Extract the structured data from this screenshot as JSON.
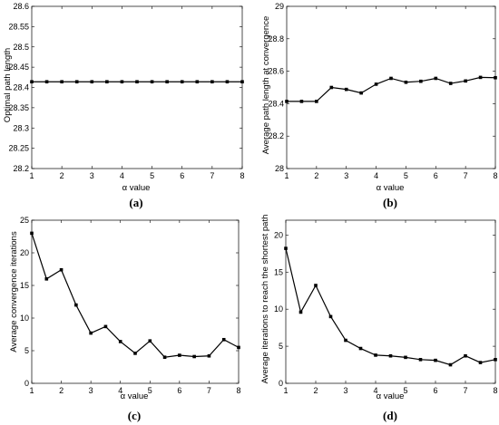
{
  "chart_data": [
    {
      "id": "a",
      "type": "line",
      "caption": "(a)",
      "xlabel": "α value",
      "ylabel": "Optimal path length",
      "xlim": [
        1,
        8
      ],
      "ylim": [
        28.2,
        28.6
      ],
      "xticks": [
        1,
        2,
        3,
        4,
        5,
        6,
        7,
        8
      ],
      "xtick_labels": [
        "1",
        "2",
        "3",
        "4",
        "5",
        "6",
        "7",
        "8"
      ],
      "yticks": [
        28.2,
        28.25,
        28.3,
        28.35,
        28.4,
        28.45,
        28.5,
        28.55,
        28.6
      ],
      "ytick_labels": [
        "28.2",
        "28.25",
        "28.3",
        "28.35",
        "28.4",
        "28.45",
        "28.5",
        "28.55",
        "28.6"
      ],
      "x": [
        1,
        1.5,
        2,
        2.5,
        3,
        3.5,
        4,
        4.5,
        5,
        5.5,
        6,
        6.5,
        7,
        7.5,
        8
      ],
      "y": [
        28.414,
        28.414,
        28.414,
        28.414,
        28.414,
        28.414,
        28.414,
        28.414,
        28.414,
        28.414,
        28.414,
        28.414,
        28.414,
        28.414,
        28.414
      ],
      "color": "#000000"
    },
    {
      "id": "b",
      "type": "line",
      "caption": "(b)",
      "xlabel": "α value",
      "ylabel": "Average path length at convergence",
      "xlim": [
        1,
        8
      ],
      "ylim": [
        28,
        29
      ],
      "xticks": [
        1,
        2,
        3,
        4,
        5,
        6,
        7,
        8
      ],
      "xtick_labels": [
        "1",
        "2",
        "3",
        "4",
        "5",
        "6",
        "7",
        "8"
      ],
      "yticks": [
        28,
        28.2,
        28.4,
        28.6,
        28.8,
        29
      ],
      "ytick_labels": [
        "28",
        "28.2",
        "28.4",
        "28.6",
        "28.8",
        "29"
      ],
      "x": [
        1,
        1.5,
        2,
        2.5,
        3,
        3.5,
        4,
        4.5,
        5,
        5.5,
        6,
        6.5,
        7,
        7.5,
        8
      ],
      "y": [
        28.414,
        28.414,
        28.414,
        28.5,
        28.488,
        28.466,
        28.52,
        28.556,
        28.532,
        28.538,
        28.556,
        28.525,
        28.54,
        28.562,
        28.56
      ],
      "color": "#000000"
    },
    {
      "id": "c",
      "type": "line",
      "caption": "(c)",
      "xlabel": "α value",
      "ylabel": "Average convergence iterations",
      "xlim": [
        1,
        8
      ],
      "ylim": [
        0,
        25
      ],
      "xticks": [
        1,
        2,
        3,
        4,
        5,
        6,
        7,
        8
      ],
      "xtick_labels": [
        "1",
        "2",
        "3",
        "4",
        "5",
        "6",
        "7",
        "8"
      ],
      "yticks": [
        0,
        5,
        10,
        15,
        20,
        25
      ],
      "ytick_labels": [
        "0",
        "5",
        "10",
        "15",
        "20",
        "25"
      ],
      "x": [
        1,
        1.5,
        2,
        2.5,
        3,
        3.5,
        4,
        4.5,
        5,
        5.5,
        6,
        6.5,
        7,
        7.5,
        8
      ],
      "y": [
        23,
        16,
        17.4,
        12,
        7.7,
        8.7,
        6.4,
        4.6,
        6.5,
        4,
        4.3,
        4.1,
        4.2,
        6.7,
        5.5
      ],
      "color": "#000000"
    },
    {
      "id": "d",
      "type": "line",
      "caption": "(d)",
      "xlabel": "α value",
      "ylabel": "Average iterations to reach the shortest path",
      "xlim": [
        1,
        8
      ],
      "ylim": [
        0,
        22
      ],
      "xticks": [
        1,
        2,
        3,
        4,
        5,
        6,
        7,
        8
      ],
      "xtick_labels": [
        "1",
        "2",
        "3",
        "4",
        "5",
        "6",
        "7",
        "8"
      ],
      "yticks": [
        0,
        5,
        10,
        15,
        20
      ],
      "ytick_labels": [
        "0",
        "5",
        "10",
        "15",
        "20"
      ],
      "x": [
        1,
        1.5,
        2,
        2.5,
        3,
        3.5,
        4,
        4.5,
        5,
        5.5,
        6,
        6.5,
        7,
        7.5,
        8
      ],
      "y": [
        18.2,
        9.6,
        13.2,
        9,
        5.8,
        4.7,
        3.8,
        3.7,
        3.5,
        3.2,
        3.1,
        2.5,
        3.7,
        2.8,
        3.2
      ],
      "color": "#000000"
    }
  ]
}
